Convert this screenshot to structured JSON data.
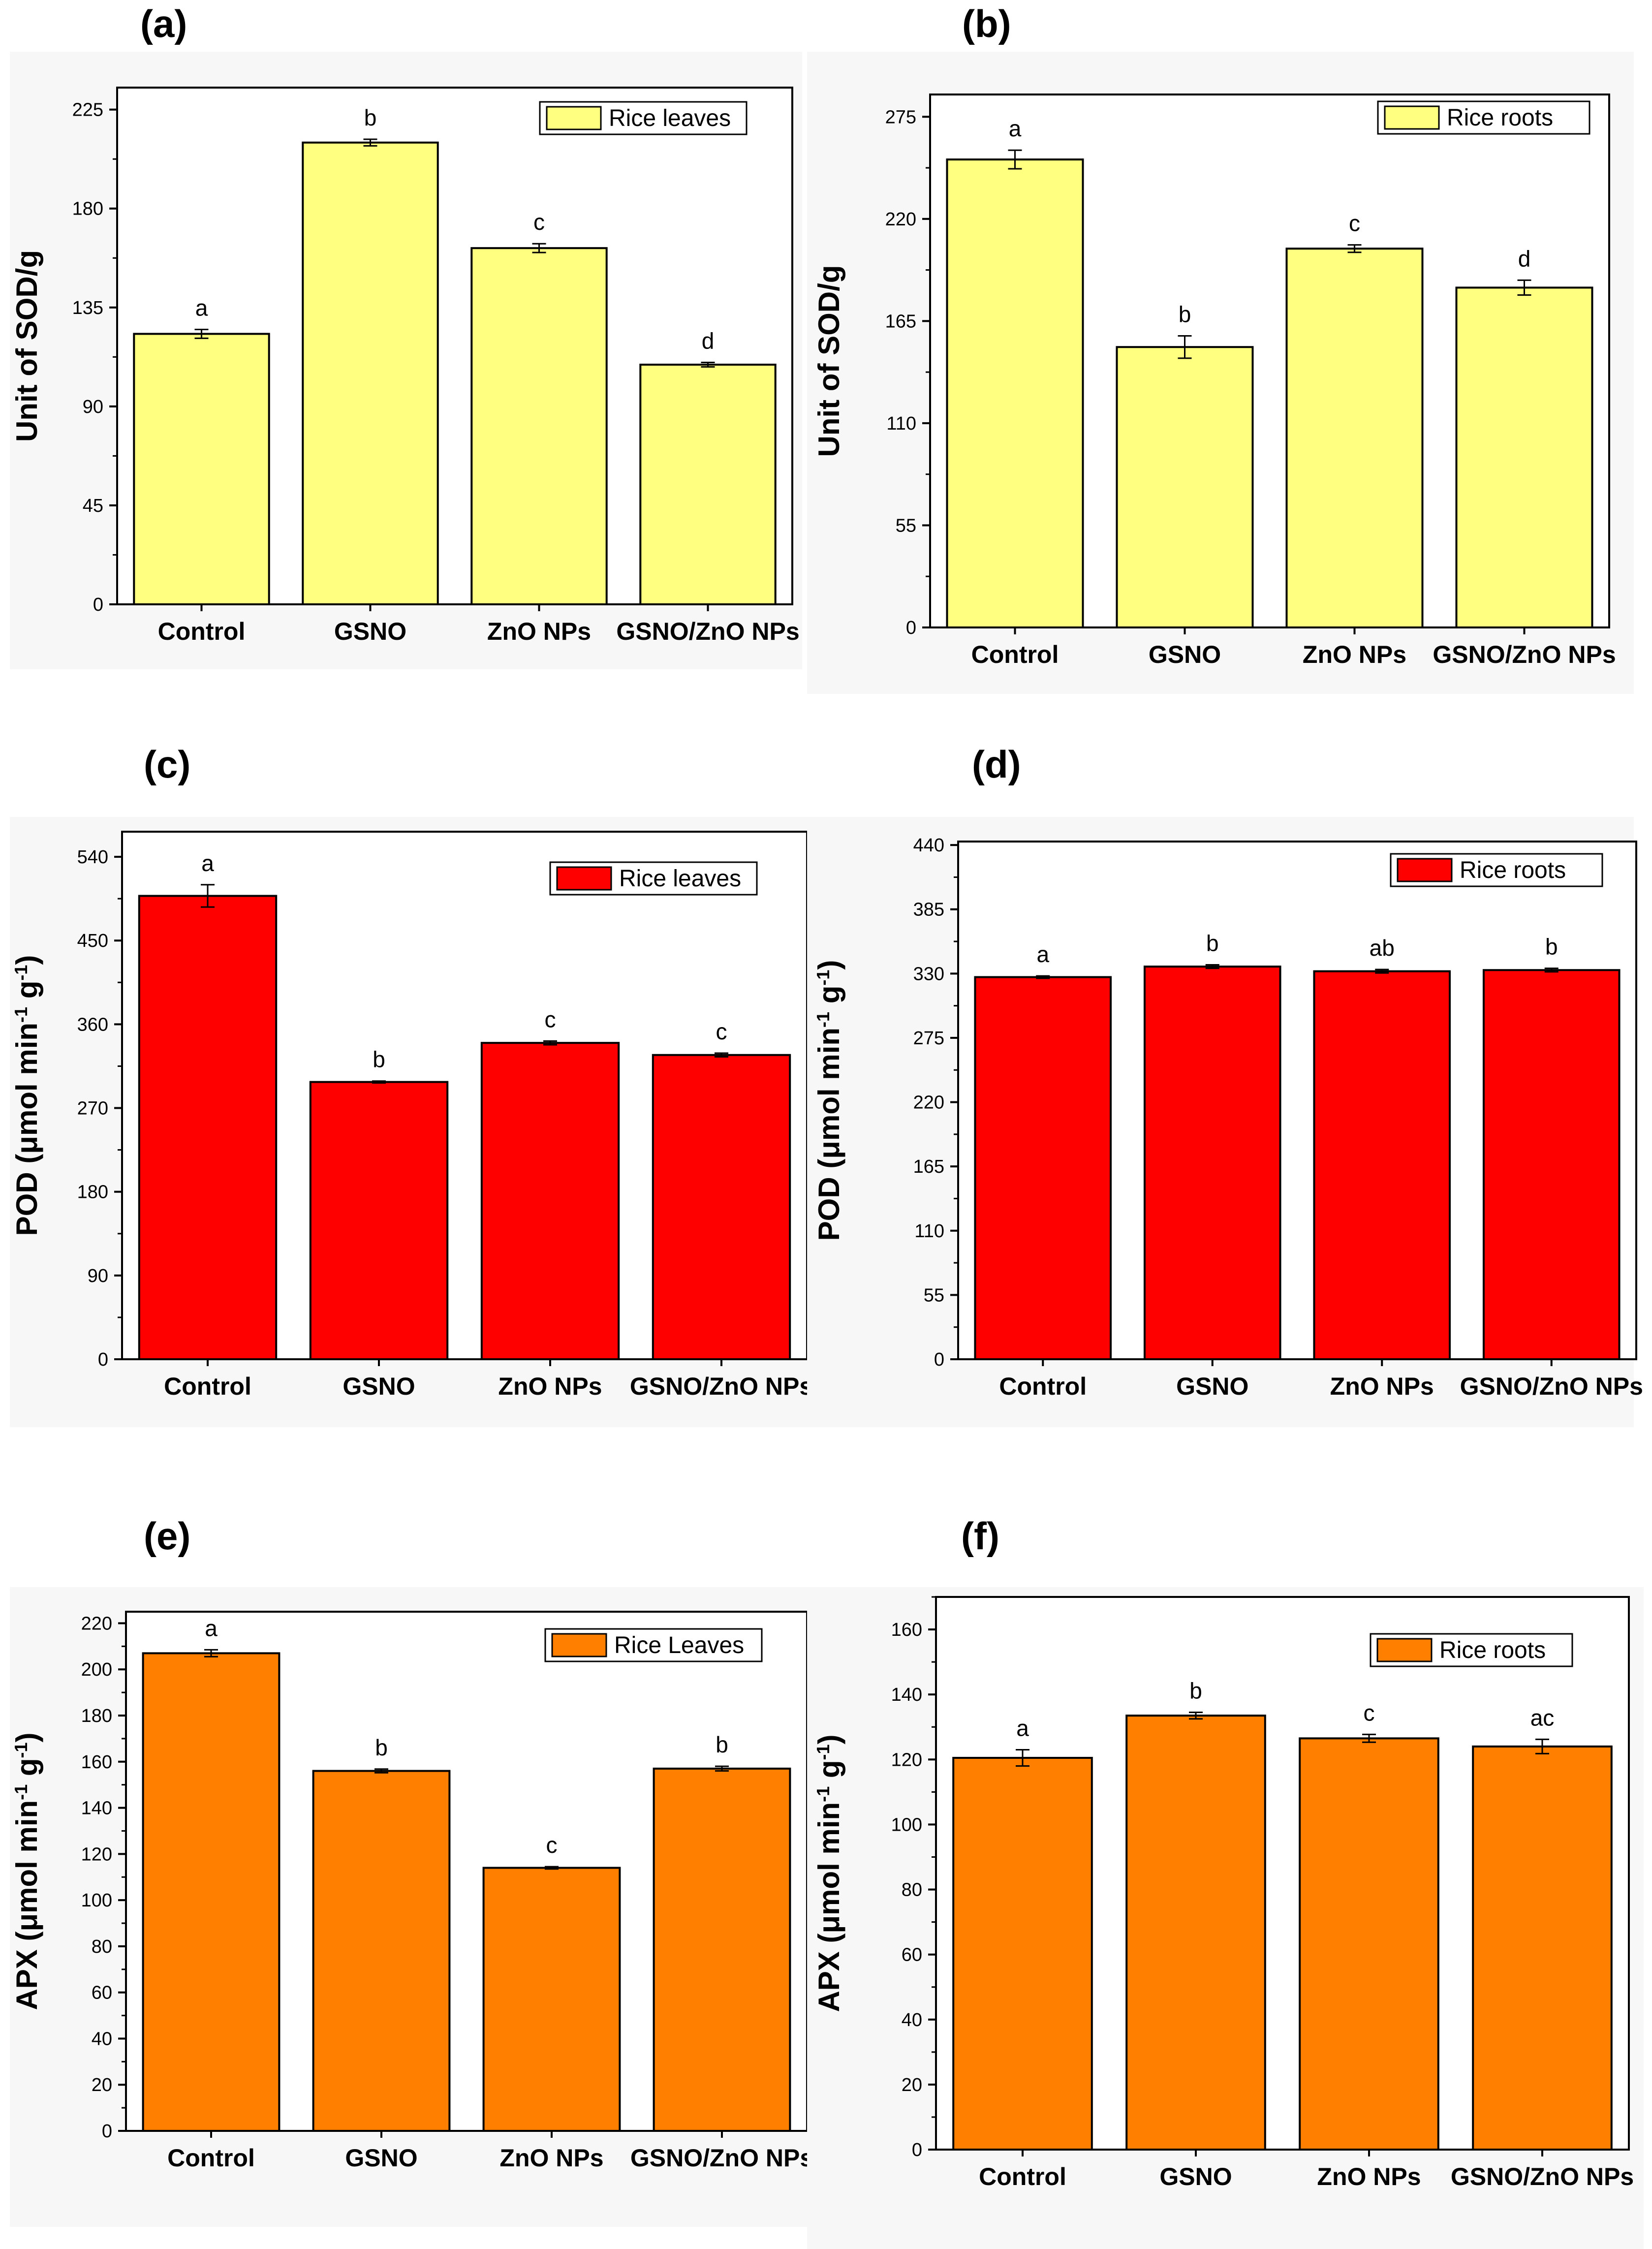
{
  "colors": {
    "background": "#ffffff",
    "axis": "#000000",
    "panel_bg": "#f7f7f7",
    "sod": "#ffff80",
    "pod": "#ff0000",
    "apx": "#ff8000"
  },
  "chart_data": [
    {
      "panel": "(a)",
      "type": "bar",
      "categories": [
        "Control",
        "GSNO",
        "ZnO NPs",
        "GSNO/ZnO NPs"
      ],
      "values": [
        123,
        210,
        162,
        109
      ],
      "errors": [
        2,
        1.5,
        2,
        1
      ],
      "significance": [
        "a",
        "b",
        "c",
        "d"
      ],
      "ylabel": "Unit of SOD/g",
      "ylabel_sup": [],
      "yticks": [
        0,
        45,
        90,
        135,
        180,
        225
      ],
      "ylim": [
        0,
        235
      ],
      "legend": "Rice leaves",
      "color": "#ffff80"
    },
    {
      "panel": "(b)",
      "type": "bar",
      "categories": [
        "Control",
        "GSNO",
        "ZnO NPs",
        "GSNO/ZnO NPs"
      ],
      "values": [
        252,
        151,
        204,
        183
      ],
      "errors": [
        5,
        6,
        2,
        4
      ],
      "significance": [
        "a",
        "b",
        "c",
        "d"
      ],
      "ylabel": "Unit of SOD/g",
      "ylabel_sup": [],
      "yticks": [
        0,
        55,
        110,
        165,
        220,
        275
      ],
      "ylim": [
        0,
        287
      ],
      "legend": "Rice roots",
      "color": "#ffff80"
    },
    {
      "panel": "(c)",
      "type": "bar",
      "categories": [
        "Control",
        "GSNO",
        "ZnO NPs",
        "GSNO/ZnO NPs"
      ],
      "values": [
        498,
        298,
        340,
        327
      ],
      "errors": [
        12,
        1,
        2,
        2
      ],
      "significance": [
        "a",
        "b",
        "c",
        "c"
      ],
      "ylabel": [
        "POD (μmol min",
        ")"
      ],
      "ylabel_sup": [
        "-1",
        "-1"
      ],
      "ylabel_mid": " g",
      "yticks": [
        0,
        90,
        180,
        270,
        360,
        450,
        540
      ],
      "ylim": [
        0,
        567
      ],
      "legend": "Rice leaves",
      "color": "#ff0000"
    },
    {
      "panel": "(d)",
      "type": "bar",
      "categories": [
        "Control",
        "GSNO",
        "ZnO NPs",
        "GSNO/ZnO NPs"
      ],
      "values": [
        327,
        336,
        332,
        333
      ],
      "errors": [
        1,
        1.5,
        1.5,
        1.5
      ],
      "significance": [
        "a",
        "b",
        "ab",
        "b"
      ],
      "ylabel": [
        "POD (μmol min",
        ")"
      ],
      "ylabel_sup": [
        "-1",
        "-1"
      ],
      "ylabel_mid": " g",
      "yticks": [
        0,
        55,
        110,
        165,
        220,
        275,
        330,
        385,
        440
      ],
      "ylim": [
        0,
        443
      ],
      "legend": "Rice roots",
      "color": "#ff0000"
    },
    {
      "panel": "(e)",
      "type": "bar",
      "categories": [
        "Control",
        "GSNO",
        "ZnO NPs",
        "GSNO/ZnO NPs"
      ],
      "values": [
        207,
        156,
        114,
        157
      ],
      "errors": [
        1.5,
        0.8,
        0.5,
        1
      ],
      "significance": [
        "a",
        "b",
        "c",
        "b"
      ],
      "ylabel": [
        "APX (μmol min",
        ")"
      ],
      "ylabel_sup": [
        "-1",
        "-1"
      ],
      "ylabel_mid": " g",
      "yticks": [
        0,
        20,
        40,
        60,
        80,
        100,
        120,
        140,
        160,
        180,
        200,
        220
      ],
      "ylim": [
        0,
        225
      ],
      "legend": "Rice Leaves",
      "color": "#ff8000"
    },
    {
      "panel": "(f)",
      "type": "bar",
      "categories": [
        "Control",
        "GSNO",
        "ZnO NPs",
        "GSNO/ZnO NPs"
      ],
      "values": [
        120.5,
        133.5,
        126.5,
        124
      ],
      "errors": [
        2.5,
        1,
        1.2,
        2.2
      ],
      "significance": [
        "a",
        "b",
        "c",
        "ac"
      ],
      "ylabel": [
        "APX (μmol min",
        ")"
      ],
      "ylabel_sup": [
        "-1",
        "-1"
      ],
      "ylabel_mid": " g",
      "yticks": [
        0,
        20,
        40,
        60,
        80,
        100,
        120,
        140,
        160
      ],
      "ylim": [
        0,
        170
      ],
      "legend": "Rice roots",
      "color": "#ff8000"
    }
  ]
}
